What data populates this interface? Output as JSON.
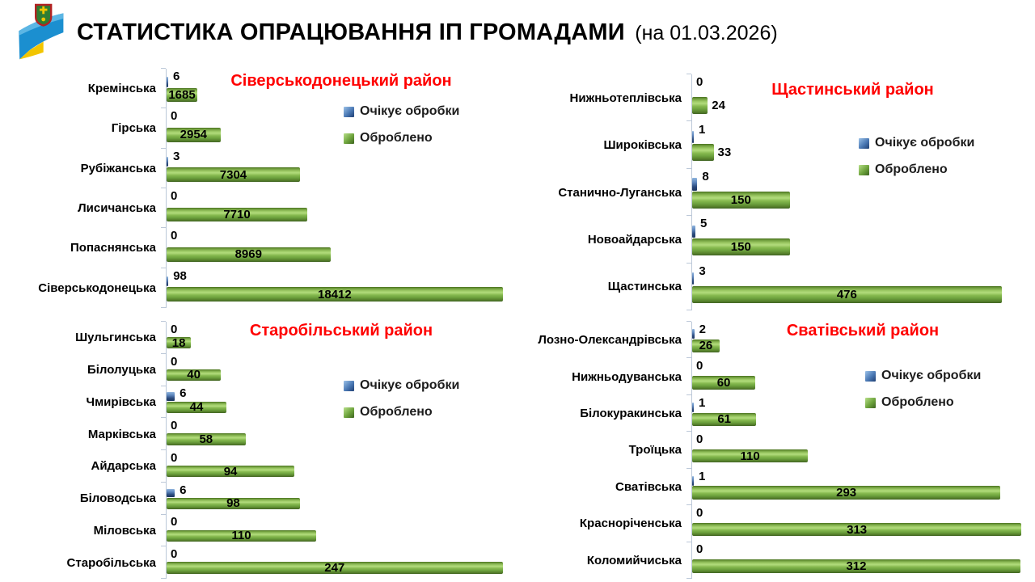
{
  "header": {
    "title": "СТАТИСТИКА ОПРАЦЮВАННЯ ІП ГРОМАДАМИ",
    "date_suffix": "(на 01.03.2026)"
  },
  "legend": {
    "pending": "Очікує обробки",
    "processed": "Оброблено"
  },
  "colors": {
    "pending_bar": "#2b4a7d",
    "processed_bar": "#76ab46",
    "district_title": "#ff0000",
    "axis": "#bcc8d8",
    "text": "#000000"
  },
  "chart_data": [
    {
      "type": "bar",
      "orientation": "horizontal",
      "district": "Сіверськодонецький район",
      "axis_max": 19000,
      "grid": false,
      "legend_entries": [
        "Очікує обробки",
        "Оброблено"
      ],
      "categories": [
        "Кремінська",
        "Гірська",
        "Рубіжанська",
        "Лисичанська",
        "Попаснянська",
        "Сіверськодонецька"
      ],
      "series": [
        {
          "name": "Очікує обробки",
          "values": [
            6,
            0,
            3,
            0,
            0,
            98
          ]
        },
        {
          "name": "Оброблено",
          "values": [
            1685,
            2954,
            7304,
            7710,
            8969,
            18412
          ]
        }
      ]
    },
    {
      "type": "bar",
      "orientation": "horizontal",
      "district": "Щастинський район",
      "axis_max": 490,
      "grid": false,
      "legend_entries": [
        "Очікує обробки",
        "Оброблено"
      ],
      "categories": [
        "Нижньотеплівська",
        "Широківська",
        "Станично-Луганська",
        "Новоайдарська",
        "Щастинська"
      ],
      "series": [
        {
          "name": "Очікує обробки",
          "values": [
            0,
            1,
            8,
            5,
            3
          ]
        },
        {
          "name": "Оброблено",
          "values": [
            24,
            33,
            150,
            150,
            476
          ]
        }
      ]
    },
    {
      "type": "bar",
      "orientation": "horizontal",
      "district": "Старобільський район",
      "axis_max": 255,
      "grid": false,
      "legend_entries": [
        "Очікує обробки",
        "Оброблено"
      ],
      "categories": [
        "Шульгинська",
        "Білолуцька",
        "Чмирівська",
        "Марківська",
        "Айдарська",
        "Біловодська",
        "Міловська",
        "Старобільська"
      ],
      "series": [
        {
          "name": "Очікує обробки",
          "values": [
            0,
            0,
            6,
            0,
            0,
            6,
            0,
            0
          ]
        },
        {
          "name": "Оброблено",
          "values": [
            18,
            40,
            44,
            58,
            94,
            98,
            110,
            247
          ]
        }
      ]
    },
    {
      "type": "bar",
      "orientation": "horizontal",
      "district": "Сватівський район",
      "axis_max": 322,
      "grid": false,
      "legend_entries": [
        "Очікує обробки",
        "Оброблено"
      ],
      "categories": [
        "Лозно-Олександрівська",
        "Нижньодуванська",
        "Білокуракинська",
        "Троїцька",
        "Сватівська",
        "Красноріченська",
        "Коломийчиська"
      ],
      "series": [
        {
          "name": "Очікує обробки",
          "values": [
            2,
            0,
            1,
            0,
            1,
            0,
            0
          ]
        },
        {
          "name": "Оброблено",
          "values": [
            26,
            60,
            61,
            110,
            293,
            313,
            312
          ]
        }
      ]
    }
  ]
}
